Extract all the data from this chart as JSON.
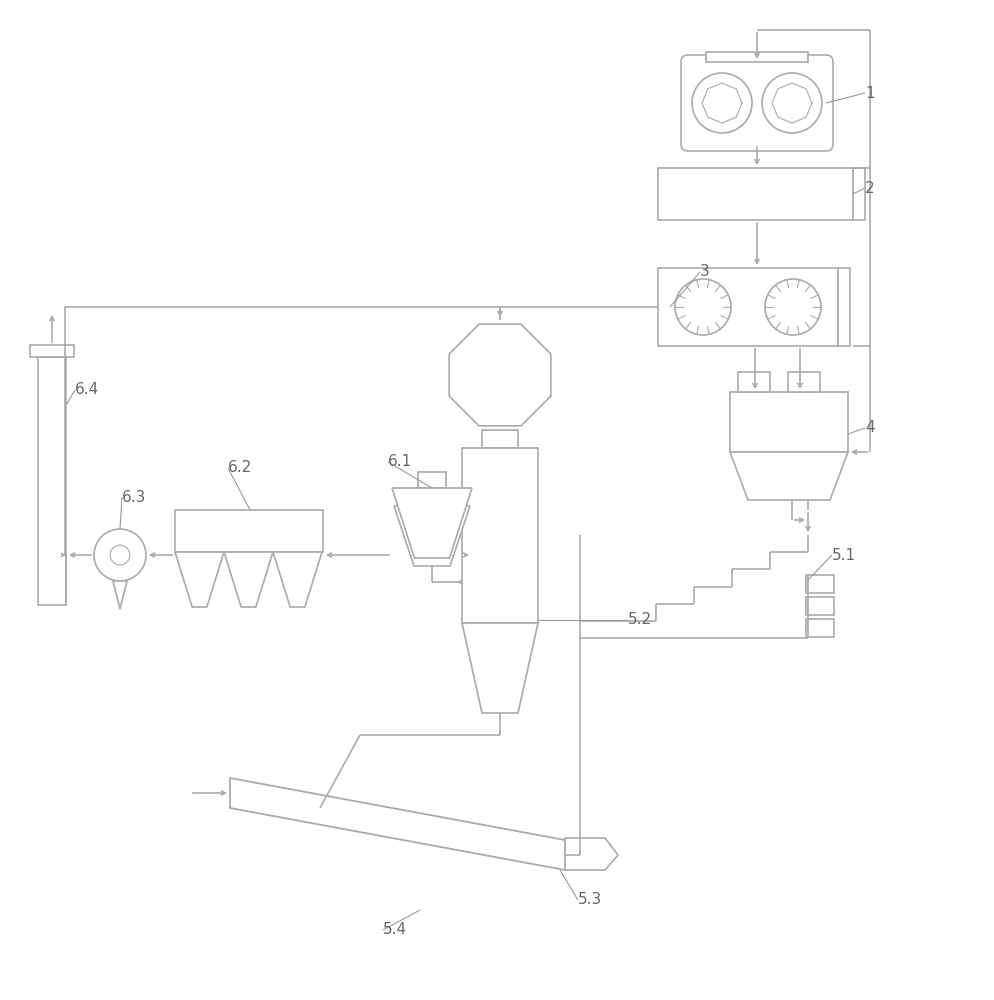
{
  "bg_color": "#ffffff",
  "lc": "#aaaaaa",
  "lw": 1.2,
  "thin": 0.9,
  "label_fs": 11,
  "label_color": "#666666"
}
